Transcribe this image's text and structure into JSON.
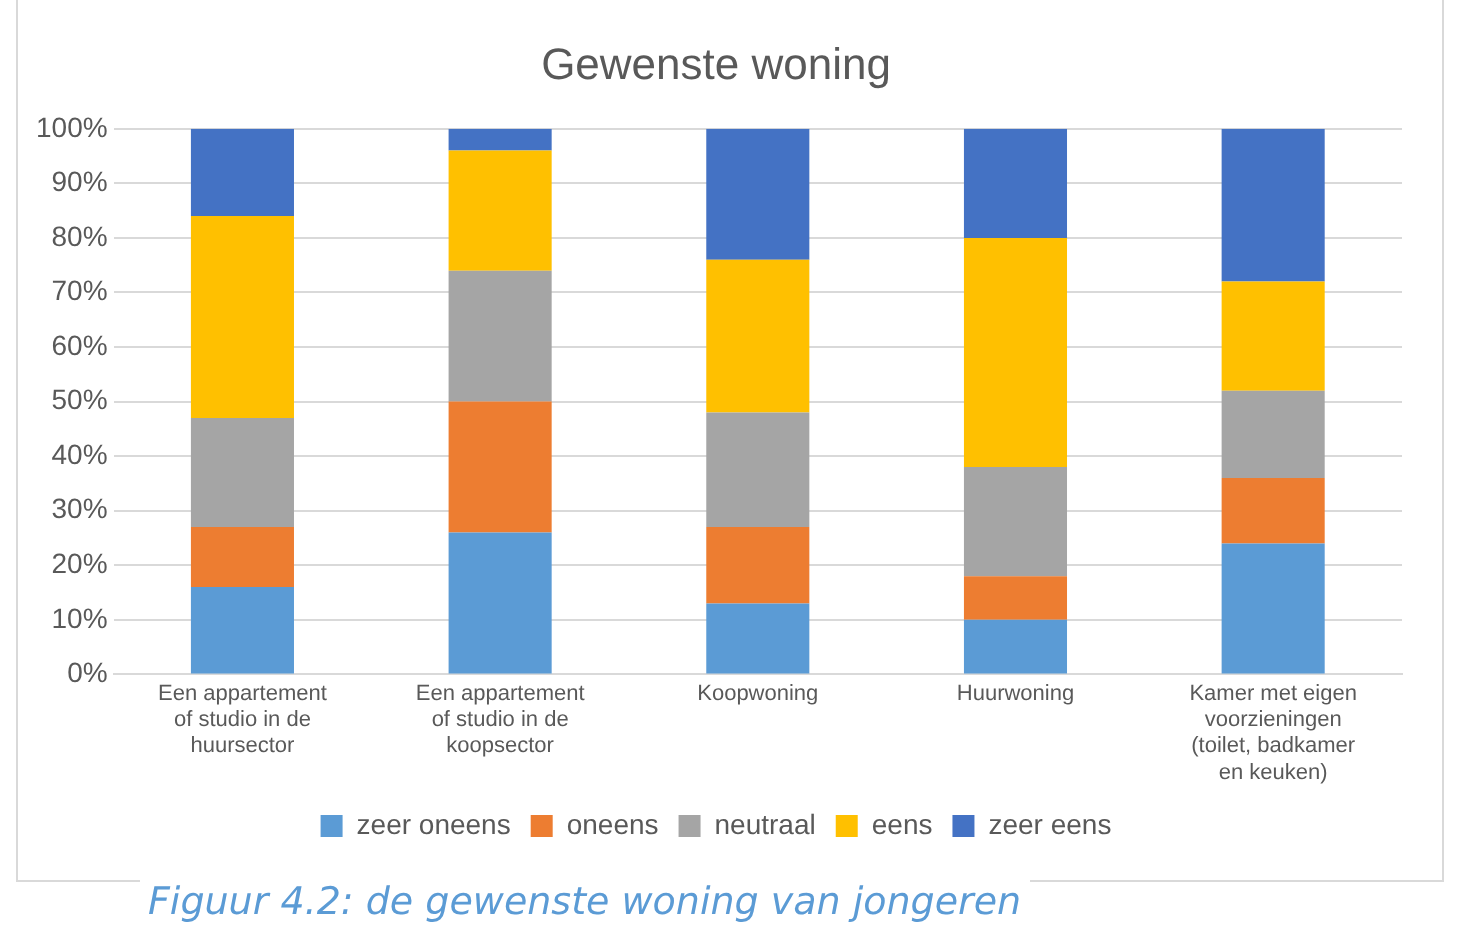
{
  "chart_data": {
    "type": "bar",
    "stacked": true,
    "title": "Gewenste woning",
    "categories": [
      "Een appartement of studio in de huursector",
      "Een appartement of studio in de koopsector",
      "Koopwoning",
      "Huurwoning",
      "Kamer met eigen voorzieningen (toilet, badkamer en keuken)"
    ],
    "series": [
      {
        "name": "zeer oneens",
        "color": "#5b9bd5",
        "values": [
          16,
          26,
          13,
          10,
          24
        ]
      },
      {
        "name": "oneens",
        "color": "#ed7d31",
        "values": [
          11,
          24,
          14,
          8,
          12
        ]
      },
      {
        "name": "neutraal",
        "color": "#a5a5a5",
        "values": [
          20,
          24,
          21,
          20,
          16
        ]
      },
      {
        "name": "eens",
        "color": "#ffc000",
        "values": [
          37,
          22,
          28,
          42,
          20
        ]
      },
      {
        "name": "zeer eens",
        "color": "#4472c4",
        "values": [
          16,
          4,
          24,
          20,
          28
        ]
      }
    ],
    "ylim": [
      0,
      100
    ],
    "yticks": [
      {
        "value": 0,
        "label": "0%"
      },
      {
        "value": 10,
        "label": "10%"
      },
      {
        "value": 20,
        "label": "20%"
      },
      {
        "value": 30,
        "label": "30%"
      },
      {
        "value": 40,
        "label": "40%"
      },
      {
        "value": 50,
        "label": "50%"
      },
      {
        "value": 60,
        "label": "60%"
      },
      {
        "value": 70,
        "label": "70%"
      },
      {
        "value": 80,
        "label": "80%"
      },
      {
        "value": 90,
        "label": "90%"
      },
      {
        "value": 100,
        "label": "100%"
      }
    ],
    "grid": "y",
    "legend": "bottom",
    "annotations": [
      "Figuur 4.2: de gewenste woning van jongeren"
    ]
  }
}
